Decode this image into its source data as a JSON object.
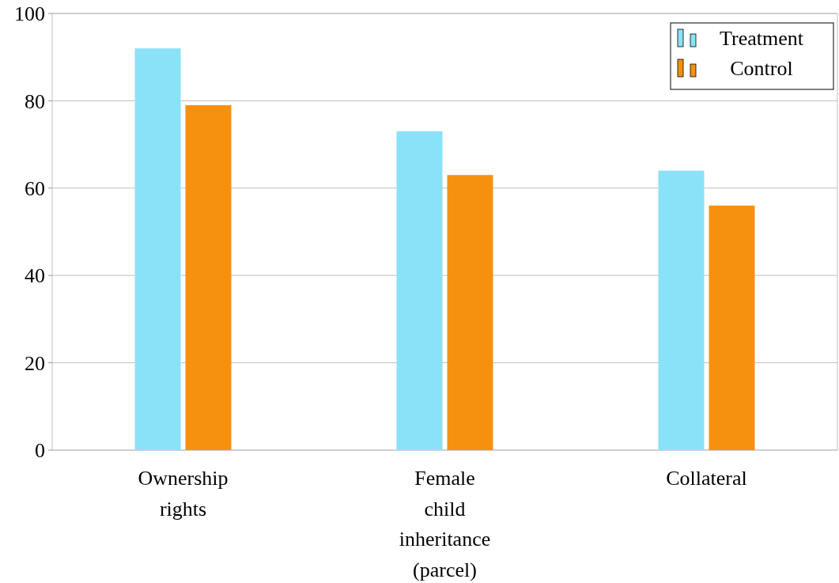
{
  "chart_data": {
    "type": "bar",
    "categories": [
      "Ownership rights",
      "Female child inheritance (parcel)",
      "Collateral"
    ],
    "series": [
      {
        "name": "Treatment",
        "color": "#89e2f7",
        "values": [
          92,
          73,
          64
        ]
      },
      {
        "name": "Control",
        "color": "#f69110",
        "values": [
          79,
          63,
          56
        ]
      }
    ],
    "ylim": [
      0,
      100
    ],
    "yticks": [
      0,
      20,
      40,
      60,
      80,
      100
    ],
    "grid": "y",
    "legend": "top right"
  }
}
